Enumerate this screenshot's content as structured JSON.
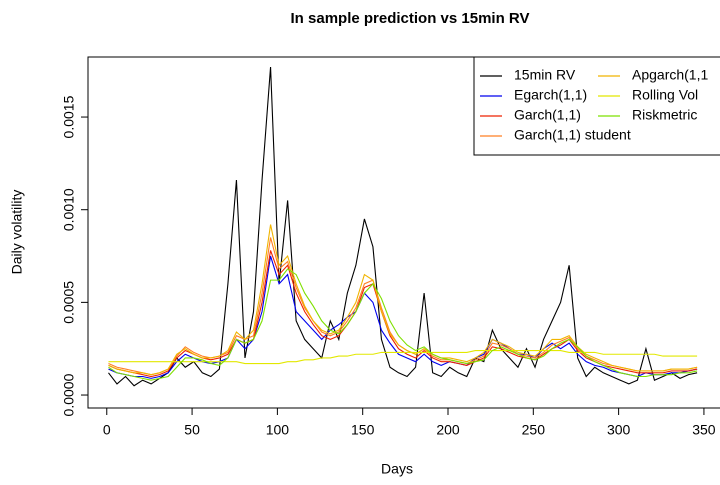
{
  "chart_data": {
    "type": "line",
    "title": "In sample prediction vs 15min RV",
    "x_label": "Days",
    "y_label": "Daily volatility",
    "xlim": [
      -11,
      362
    ],
    "ylim": [
      -7e-05,
      0.001824
    ],
    "xticks": [
      0,
      50,
      100,
      150,
      200,
      250,
      300,
      350
    ],
    "yticks": [
      {
        "value": 0,
        "label": "0.0000"
      },
      {
        "value": 0.0005,
        "label": "0.0005"
      },
      {
        "value": 0.001,
        "label": "0.0010"
      },
      {
        "value": 0.0015,
        "label": "0.0015"
      }
    ],
    "legend": "top-right",
    "x": [
      1,
      6,
      11,
      16,
      21,
      26,
      31,
      36,
      41,
      46,
      51,
      56,
      61,
      66,
      71,
      76,
      81,
      86,
      91,
      96,
      101,
      106,
      111,
      116,
      121,
      126,
      131,
      136,
      141,
      146,
      151,
      156,
      161,
      166,
      171,
      176,
      181,
      186,
      191,
      196,
      201,
      206,
      211,
      216,
      221,
      226,
      231,
      236,
      241,
      246,
      251,
      256,
      261,
      266,
      271,
      276,
      281,
      286,
      291,
      296,
      301,
      306,
      311,
      316,
      321,
      326,
      331,
      336,
      341,
      346
    ],
    "series": [
      {
        "name": "15min RV",
        "color": "#000000",
        "values": [
          0.00012,
          6e-05,
          0.0001,
          5e-05,
          8e-05,
          6e-05,
          9e-05,
          0.00012,
          0.0002,
          0.00015,
          0.00018,
          0.00012,
          0.0001,
          0.00014,
          0.0006,
          0.00116,
          0.0002,
          0.00045,
          0.00116,
          0.00177,
          0.0006,
          0.00105,
          0.0004,
          0.0003,
          0.00025,
          0.0002,
          0.0004,
          0.0003,
          0.00055,
          0.0007,
          0.00095,
          0.0008,
          0.0003,
          0.00015,
          0.00012,
          0.0001,
          0.00015,
          0.00055,
          0.00012,
          0.0001,
          0.00015,
          0.00012,
          0.0001,
          0.0002,
          0.00018,
          0.00035,
          0.00025,
          0.0002,
          0.00015,
          0.00025,
          0.00015,
          0.0003,
          0.0004,
          0.0005,
          0.0007,
          0.0002,
          0.0001,
          0.00015,
          0.00012,
          0.0001,
          8e-05,
          6e-05,
          8e-05,
          0.00025,
          8e-05,
          0.0001,
          0.00012,
          9e-05,
          0.00011,
          0.00012
        ]
      },
      {
        "name": "Egarch(1,1)",
        "color": "#0000ee",
        "values": [
          0.00014,
          0.00012,
          0.00011,
          0.0001,
          0.0001,
          9e-05,
          0.0001,
          0.00012,
          0.00018,
          0.00022,
          0.0002,
          0.00018,
          0.00017,
          0.00018,
          0.0002,
          0.0003,
          0.00025,
          0.0003,
          0.00045,
          0.00075,
          0.0006,
          0.00065,
          0.00045,
          0.0004,
          0.00035,
          0.0003,
          0.00035,
          0.00038,
          0.00042,
          0.00045,
          0.00055,
          0.0005,
          0.00035,
          0.00028,
          0.00022,
          0.0002,
          0.00018,
          0.00022,
          0.00018,
          0.00016,
          0.00018,
          0.00017,
          0.00016,
          0.0002,
          0.00022,
          0.0003,
          0.00028,
          0.00025,
          0.00022,
          0.00022,
          0.0002,
          0.00025,
          0.00028,
          0.00025,
          0.00028,
          0.00022,
          0.00018,
          0.00016,
          0.00015,
          0.00013,
          0.00012,
          0.00011,
          0.0001,
          0.00012,
          0.00011,
          0.00011,
          0.00012,
          0.00012,
          0.00013,
          0.00014
        ]
      },
      {
        "name": "Garch(1,1)",
        "color": "#ee2200",
        "values": [
          0.00016,
          0.00014,
          0.00013,
          0.00012,
          0.00011,
          0.0001,
          0.00011,
          0.00013,
          0.0002,
          0.00024,
          0.00022,
          0.0002,
          0.00019,
          0.0002,
          0.00022,
          0.0003,
          0.00028,
          0.0003,
          0.0005,
          0.00078,
          0.00065,
          0.0007,
          0.00055,
          0.00045,
          0.00038,
          0.00032,
          0.0003,
          0.00032,
          0.00038,
          0.00045,
          0.00058,
          0.0006,
          0.00045,
          0.00032,
          0.00025,
          0.00022,
          0.0002,
          0.00024,
          0.0002,
          0.00018,
          0.00018,
          0.00017,
          0.00016,
          0.00018,
          0.0002,
          0.00026,
          0.00025,
          0.00023,
          0.00021,
          0.0002,
          0.00019,
          0.00022,
          0.00025,
          0.00027,
          0.0003,
          0.00024,
          0.0002,
          0.00018,
          0.00016,
          0.00015,
          0.00014,
          0.00013,
          0.00012,
          0.00012,
          0.00012,
          0.00012,
          0.00013,
          0.00013,
          0.00013,
          0.00014
        ]
      },
      {
        "name": "Garch(1,1) student",
        "color": "#ff7f24",
        "values": [
          0.00017,
          0.00015,
          0.00014,
          0.00013,
          0.00012,
          0.00011,
          0.00012,
          0.00014,
          0.00021,
          0.00026,
          0.00023,
          0.00021,
          0.0002,
          0.00021,
          0.00023,
          0.00032,
          0.0003,
          0.00032,
          0.00055,
          0.00085,
          0.00068,
          0.00072,
          0.00058,
          0.00047,
          0.0004,
          0.00034,
          0.00032,
          0.00034,
          0.0004,
          0.00047,
          0.0006,
          0.00062,
          0.00047,
          0.00034,
          0.00027,
          0.00024,
          0.00022,
          0.00025,
          0.00021,
          0.00019,
          0.00019,
          0.00018,
          0.00017,
          0.00019,
          0.00021,
          0.00028,
          0.00027,
          0.00025,
          0.00022,
          0.00021,
          0.0002,
          0.00023,
          0.00027,
          0.00029,
          0.00031,
          0.00025,
          0.00021,
          0.00019,
          0.00017,
          0.00016,
          0.00015,
          0.00014,
          0.00013,
          0.00013,
          0.00013,
          0.00013,
          0.00014,
          0.00014,
          0.00014,
          0.00015
        ]
      },
      {
        "name": "Apgarch(1,1",
        "color": "#f0b400",
        "values": [
          0.00016,
          0.00014,
          0.00013,
          0.00012,
          0.00012,
          0.00011,
          0.00012,
          0.00014,
          0.00022,
          0.00025,
          0.00022,
          0.0002,
          0.0002,
          0.00021,
          0.00024,
          0.00034,
          0.0003,
          0.00035,
          0.0006,
          0.00092,
          0.0007,
          0.00075,
          0.0006,
          0.00048,
          0.0004,
          0.00035,
          0.00033,
          0.00035,
          0.00042,
          0.0005,
          0.00065,
          0.00062,
          0.00045,
          0.00033,
          0.00027,
          0.00024,
          0.00022,
          0.00025,
          0.00022,
          0.0002,
          0.0002,
          0.00019,
          0.00018,
          0.0002,
          0.00023,
          0.0003,
          0.00028,
          0.00026,
          0.00023,
          0.00022,
          0.00021,
          0.00025,
          0.0003,
          0.0003,
          0.00032,
          0.00026,
          0.00022,
          0.0002,
          0.00018,
          0.00016,
          0.00015,
          0.00014,
          0.00013,
          0.00013,
          0.00013,
          0.00013,
          0.00014,
          0.00014,
          0.00014,
          0.00015
        ]
      },
      {
        "name": "Rolling Vol",
        "color": "#e2e800",
        "values": [
          0.00018,
          0.00018,
          0.00018,
          0.00018,
          0.00018,
          0.00018,
          0.00018,
          0.00018,
          0.00018,
          0.00018,
          0.00018,
          0.00018,
          0.00018,
          0.00018,
          0.00018,
          0.00018,
          0.00017,
          0.00017,
          0.00017,
          0.00017,
          0.00017,
          0.00018,
          0.00018,
          0.00019,
          0.00019,
          0.0002,
          0.0002,
          0.00021,
          0.00021,
          0.00022,
          0.00022,
          0.00022,
          0.00023,
          0.00023,
          0.00023,
          0.00023,
          0.00023,
          0.00023,
          0.00023,
          0.00023,
          0.00023,
          0.00023,
          0.00023,
          0.00024,
          0.00024,
          0.00024,
          0.00024,
          0.00024,
          0.00024,
          0.00024,
          0.00024,
          0.00024,
          0.00024,
          0.00024,
          0.00023,
          0.00023,
          0.00023,
          0.00023,
          0.00022,
          0.00022,
          0.00022,
          0.00022,
          0.00022,
          0.00022,
          0.00022,
          0.00021,
          0.00021,
          0.00021,
          0.00021,
          0.00021
        ]
      },
      {
        "name": "Riskmetric",
        "color": "#7ee000",
        "values": [
          0.00015,
          0.00012,
          0.00011,
          0.0001,
          9e-05,
          8e-05,
          9e-05,
          0.0001,
          0.00015,
          0.0002,
          0.0002,
          0.00019,
          0.00017,
          0.00016,
          0.0002,
          0.0003,
          0.00028,
          0.0003,
          0.0004,
          0.00062,
          0.00062,
          0.00068,
          0.00065,
          0.00055,
          0.00048,
          0.0004,
          0.00035,
          0.00033,
          0.00038,
          0.00045,
          0.00055,
          0.0006,
          0.00052,
          0.0004,
          0.00032,
          0.00027,
          0.00024,
          0.00026,
          0.00022,
          0.0002,
          0.00019,
          0.00018,
          0.00017,
          0.00018,
          0.00019,
          0.00024,
          0.00026,
          0.00024,
          0.00022,
          0.0002,
          0.00019,
          0.00021,
          0.00025,
          0.00028,
          0.0003,
          0.00026,
          0.00021,
          0.00018,
          0.00016,
          0.00014,
          0.00012,
          0.00011,
          0.0001,
          0.0001,
          0.00011,
          0.00011,
          0.00011,
          0.00012,
          0.00012,
          0.00013
        ]
      }
    ]
  }
}
